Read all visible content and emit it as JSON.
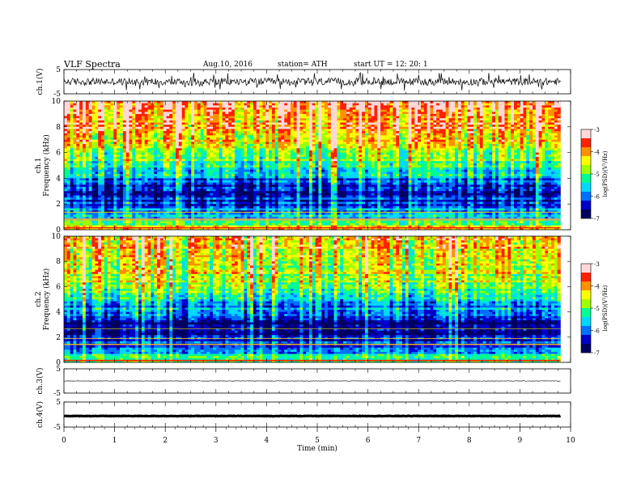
{
  "header": {
    "title": "VLF  Spectra",
    "date": "Aug.10, 2016",
    "station": "station= ATH",
    "start": "start  UT  =    12: 20: 1"
  },
  "colors": {
    "background": "#ffffff",
    "axis": "#000000",
    "waveform": "#000000",
    "spectrogram_palette": [
      "#000060",
      "#0000cc",
      "#0070ff",
      "#00d8ff",
      "#00ff90",
      "#a0ff00",
      "#ffff00",
      "#ff9000",
      "#ff2000",
      "#ffd8d8"
    ]
  },
  "chart_data": [
    {
      "type": "line",
      "panel": "ch1-waveform",
      "ylabel": "ch.1(V)",
      "ylim": [
        -5,
        5
      ],
      "yticks": [
        "5",
        "-5"
      ],
      "xlim": [
        0,
        10
      ],
      "data_end": 9.8,
      "mean": 0,
      "amplitude_range": [
        -1.5,
        1.5
      ]
    },
    {
      "type": "heatmap",
      "panel": "ch1-spectrogram",
      "ylabel": [
        "ch.1",
        "Frequency  (kHz)"
      ],
      "ylim": [
        0,
        10
      ],
      "yticks": [
        "0",
        "2",
        "4",
        "6",
        "8",
        "10"
      ],
      "xlim": [
        0,
        10
      ],
      "data_end": 9.8,
      "colorbar": {
        "label": "log(PSD)(V²/Hz)",
        "range": [
          -7,
          -3
        ],
        "ticks": [
          "-3",
          "-4",
          "-5",
          "-6",
          "-7"
        ]
      },
      "profile_logpsd": [
        {
          "freq_khz": 0.2,
          "value": -4.5
        },
        {
          "freq_khz": 1.0,
          "value": -5.6
        },
        {
          "freq_khz": 2.0,
          "value": -6.3
        },
        {
          "freq_khz": 3.0,
          "value": -6.4
        },
        {
          "freq_khz": 4.0,
          "value": -5.9
        },
        {
          "freq_khz": 5.0,
          "value": -5.2
        },
        {
          "freq_khz": 6.0,
          "value": -4.7
        },
        {
          "freq_khz": 7.0,
          "value": -4.2
        },
        {
          "freq_khz": 8.0,
          "value": -3.9
        },
        {
          "freq_khz": 9.0,
          "value": -3.7
        },
        {
          "freq_khz": 10.0,
          "value": -3.6
        }
      ]
    },
    {
      "type": "heatmap",
      "panel": "ch2-spectrogram",
      "ylabel": [
        "ch.2",
        "Frequency  (kHz)"
      ],
      "ylim": [
        0,
        10
      ],
      "yticks": [
        "0",
        "2",
        "4",
        "6",
        "8",
        "10"
      ],
      "xlim": [
        0,
        10
      ],
      "data_end": 9.8,
      "colorbar": {
        "label": "log(PSD)(V²/Hz)",
        "range": [
          -7,
          -3
        ],
        "ticks": [
          "-3",
          "-4",
          "-5",
          "-6",
          "-7"
        ]
      },
      "profile_logpsd": [
        {
          "freq_khz": 0.2,
          "value": -5.2
        },
        {
          "freq_khz": 1.0,
          "value": -5.8
        },
        {
          "freq_khz": 2.0,
          "value": -6.6
        },
        {
          "freq_khz": 3.0,
          "value": -6.8
        },
        {
          "freq_khz": 4.0,
          "value": -6.1
        },
        {
          "freq_khz": 5.0,
          "value": -5.5
        },
        {
          "freq_khz": 6.0,
          "value": -5.0
        },
        {
          "freq_khz": 7.0,
          "value": -4.7
        },
        {
          "freq_khz": 8.0,
          "value": -4.4
        },
        {
          "freq_khz": 9.0,
          "value": -4.2
        },
        {
          "freq_khz": 10.0,
          "value": -4.1
        }
      ]
    },
    {
      "type": "line",
      "panel": "ch3-waveform",
      "ylabel": "ch.3(V)",
      "ylim": [
        -5,
        5
      ],
      "yticks": [
        "5",
        "-5"
      ],
      "xlim": [
        0,
        10
      ],
      "data_end": 9.8,
      "mean": 0,
      "amplitude_range": [
        -0.1,
        0.1
      ]
    },
    {
      "type": "line",
      "panel": "ch4-waveform",
      "ylabel": "ch.4(V)",
      "ylim": [
        -5,
        5
      ],
      "yticks": [
        "5",
        "-5"
      ],
      "xlim": [
        0,
        10
      ],
      "data_end": 9.8,
      "mean": -0.6,
      "amplitude_range": [
        -0.7,
        -0.5
      ]
    }
  ],
  "x_axis": {
    "label": "Time  (min)",
    "ticks": [
      "0",
      "1",
      "2",
      "3",
      "4",
      "5",
      "6",
      "7",
      "8",
      "9",
      "10"
    ]
  }
}
